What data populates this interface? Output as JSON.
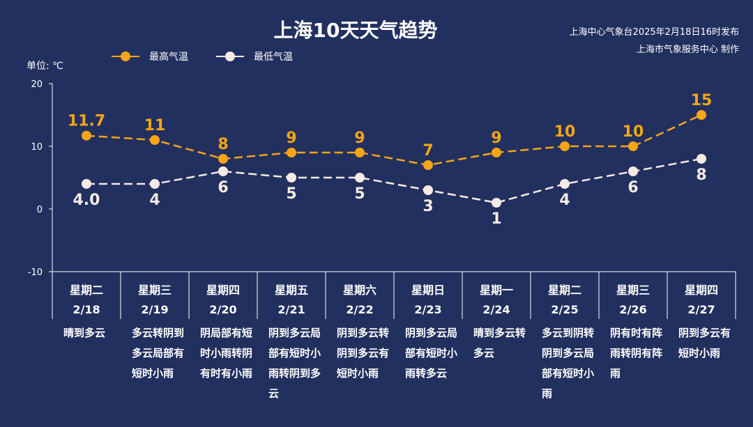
{
  "header": {
    "title": "上海10天天气趋势",
    "source_line1": "上海中心气象台2025年2月18日16时发布",
    "source_line2": "上海市气象服务中心 制作"
  },
  "colors": {
    "background": "#22305f",
    "high": "#f5a516",
    "low": "#f6ebe4"
  },
  "chart_data": {
    "type": "line",
    "ylabel": "单位: ℃",
    "ylim": [
      -10,
      20
    ],
    "yticks": [
      "20",
      "10",
      "0",
      "-10"
    ],
    "grid": false,
    "legend_position": "top-left",
    "categories": [
      "星期二",
      "星期三",
      "星期四",
      "星期五",
      "星期六",
      "星期日",
      "星期一",
      "星期二",
      "星期三",
      "星期四"
    ],
    "dates": [
      "2/18",
      "2/19",
      "2/20",
      "2/21",
      "2/22",
      "2/23",
      "2/24",
      "2/25",
      "2/26",
      "2/27"
    ],
    "series": [
      {
        "name": "最高气温",
        "values": [
          11.7,
          11,
          8,
          9,
          9,
          7,
          9,
          10,
          10,
          15
        ],
        "labels": [
          "11.7",
          "11",
          "8",
          "9",
          "9",
          "7",
          "9",
          "10",
          "10",
          "15"
        ]
      },
      {
        "name": "最低气温",
        "values": [
          4,
          4,
          6,
          5,
          5,
          3,
          1,
          4,
          6,
          8
        ],
        "labels": [
          "4.0",
          "4",
          "6",
          "5",
          "5",
          "3",
          "1",
          "4",
          "6",
          "8"
        ]
      }
    ],
    "weather": [
      "晴到多云",
      "多云转阴到多云局部有短时小雨",
      "阴局部有短时小雨转阴有时有小雨",
      "阴到多云局部有短时小雨转阴到多云",
      "阴到多云转阴到多云有短时小雨",
      "阴到多云局部有短时小雨转多云",
      "晴到多云转多云",
      "多云到阴转阴到多云局部有短时小雨",
      "阴有时有阵雨转阴有阵雨",
      "阴到多云有短时小雨"
    ]
  }
}
